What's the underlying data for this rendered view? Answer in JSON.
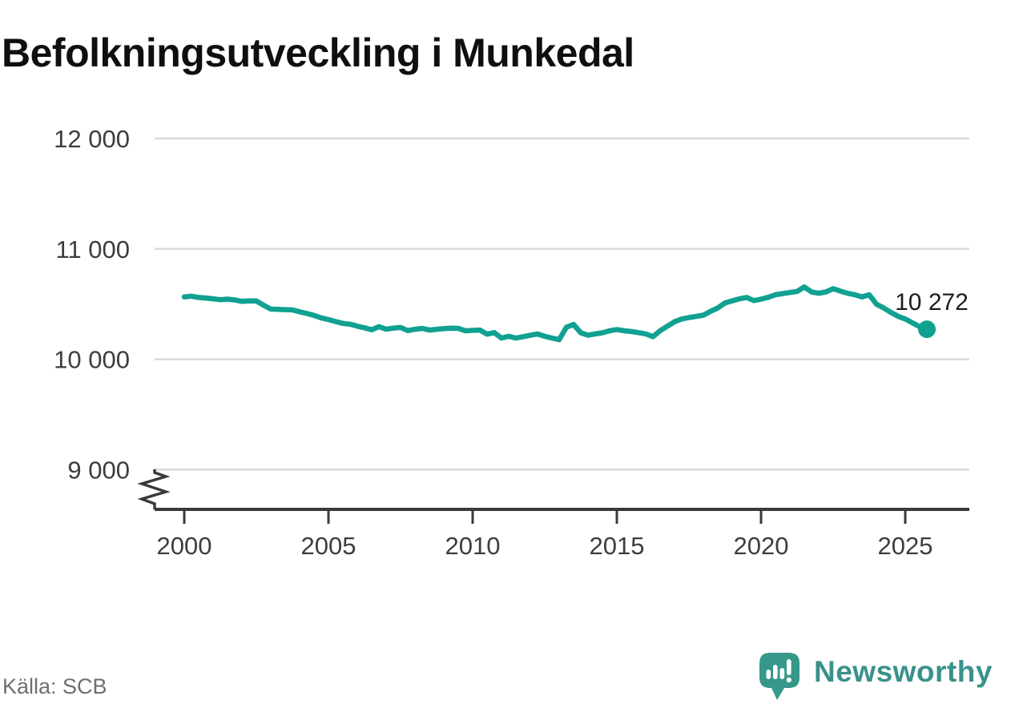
{
  "title": "Befolkningsutveckling i Munkedal",
  "source": "Källa: SCB",
  "brand": {
    "name": "Newsworthy",
    "icon": "newsworthy-speech-bubble-barchart-icon"
  },
  "colors": {
    "line": "#10a191",
    "marker": "#10a191",
    "grid": "#d9d9d9",
    "axis": "#3a3a3a",
    "tick_text": "#3d3d3d",
    "annotation_text": "#1d1d1d",
    "title_text": "#0f0f0f",
    "source_text": "#6f6f6f",
    "logo": "#35988a",
    "wordmark": "#38928b"
  },
  "chart_data": {
    "type": "line",
    "title": "Befolkningsutveckling i Munkedal",
    "xlabel": "",
    "ylabel": "",
    "grid": "horizontal",
    "legend": "none",
    "axis_break": true,
    "xlim": [
      1999,
      2027.2
    ],
    "ylim": [
      9000,
      12000
    ],
    "xticks": [
      2000,
      2005,
      2010,
      2015,
      2020,
      2025
    ],
    "xtick_labels": [
      "2000",
      "2005",
      "2010",
      "2015",
      "2020",
      "2025"
    ],
    "yticks": [
      9000,
      10000,
      11000,
      12000
    ],
    "ytick_labels": [
      "9 000",
      "10 000",
      "11 000",
      "12 000"
    ],
    "series_name": "Befolkning",
    "last_point": {
      "x": 2025.75,
      "y": 10272,
      "label": "10 272"
    },
    "points": [
      [
        2000.0,
        10565
      ],
      [
        2000.25,
        10572
      ],
      [
        2000.5,
        10560
      ],
      [
        2000.75,
        10555
      ],
      [
        2001.0,
        10548
      ],
      [
        2001.25,
        10540
      ],
      [
        2001.5,
        10545
      ],
      [
        2001.75,
        10538
      ],
      [
        2002.0,
        10525
      ],
      [
        2002.25,
        10530
      ],
      [
        2002.5,
        10528
      ],
      [
        2002.75,
        10490
      ],
      [
        2003.0,
        10455
      ],
      [
        2003.25,
        10452
      ],
      [
        2003.5,
        10450
      ],
      [
        2003.75,
        10448
      ],
      [
        2004.0,
        10430
      ],
      [
        2004.25,
        10415
      ],
      [
        2004.5,
        10398
      ],
      [
        2004.75,
        10375
      ],
      [
        2005.0,
        10360
      ],
      [
        2005.25,
        10342
      ],
      [
        2005.5,
        10325
      ],
      [
        2005.75,
        10318
      ],
      [
        2006.0,
        10300
      ],
      [
        2006.25,
        10285
      ],
      [
        2006.5,
        10268
      ],
      [
        2006.75,
        10295
      ],
      [
        2007.0,
        10272
      ],
      [
        2007.25,
        10282
      ],
      [
        2007.5,
        10288
      ],
      [
        2007.75,
        10260
      ],
      [
        2008.0,
        10272
      ],
      [
        2008.25,
        10280
      ],
      [
        2008.5,
        10265
      ],
      [
        2008.75,
        10272
      ],
      [
        2009.0,
        10278
      ],
      [
        2009.25,
        10282
      ],
      [
        2009.5,
        10280
      ],
      [
        2009.75,
        10258
      ],
      [
        2010.0,
        10262
      ],
      [
        2010.25,
        10265
      ],
      [
        2010.5,
        10228
      ],
      [
        2010.75,
        10242
      ],
      [
        2011.0,
        10192
      ],
      [
        2011.25,
        10208
      ],
      [
        2011.5,
        10192
      ],
      [
        2011.75,
        10205
      ],
      [
        2012.0,
        10218
      ],
      [
        2012.25,
        10230
      ],
      [
        2012.5,
        10208
      ],
      [
        2012.75,
        10192
      ],
      [
        2013.0,
        10178
      ],
      [
        2013.25,
        10290
      ],
      [
        2013.5,
        10315
      ],
      [
        2013.75,
        10240
      ],
      [
        2014.0,
        10218
      ],
      [
        2014.25,
        10230
      ],
      [
        2014.5,
        10240
      ],
      [
        2014.75,
        10258
      ],
      [
        2015.0,
        10270
      ],
      [
        2015.25,
        10258
      ],
      [
        2015.5,
        10252
      ],
      [
        2015.75,
        10242
      ],
      [
        2016.0,
        10230
      ],
      [
        2016.25,
        10205
      ],
      [
        2016.5,
        10258
      ],
      [
        2016.75,
        10300
      ],
      [
        2017.0,
        10340
      ],
      [
        2017.25,
        10365
      ],
      [
        2017.5,
        10378
      ],
      [
        2017.75,
        10388
      ],
      [
        2018.0,
        10400
      ],
      [
        2018.25,
        10435
      ],
      [
        2018.5,
        10465
      ],
      [
        2018.75,
        10510
      ],
      [
        2019.0,
        10530
      ],
      [
        2019.25,
        10548
      ],
      [
        2019.5,
        10560
      ],
      [
        2019.75,
        10532
      ],
      [
        2020.0,
        10545
      ],
      [
        2020.25,
        10562
      ],
      [
        2020.5,
        10585
      ],
      [
        2020.75,
        10595
      ],
      [
        2021.0,
        10605
      ],
      [
        2021.25,
        10615
      ],
      [
        2021.5,
        10655
      ],
      [
        2021.75,
        10610
      ],
      [
        2022.0,
        10598
      ],
      [
        2022.25,
        10610
      ],
      [
        2022.5,
        10640
      ],
      [
        2022.75,
        10618
      ],
      [
        2023.0,
        10598
      ],
      [
        2023.25,
        10585
      ],
      [
        2023.5,
        10565
      ],
      [
        2023.75,
        10585
      ],
      [
        2024.0,
        10500
      ],
      [
        2024.25,
        10465
      ],
      [
        2024.5,
        10425
      ],
      [
        2024.75,
        10390
      ],
      [
        2025.0,
        10365
      ],
      [
        2025.25,
        10330
      ],
      [
        2025.5,
        10295
      ],
      [
        2025.75,
        10272
      ]
    ]
  }
}
